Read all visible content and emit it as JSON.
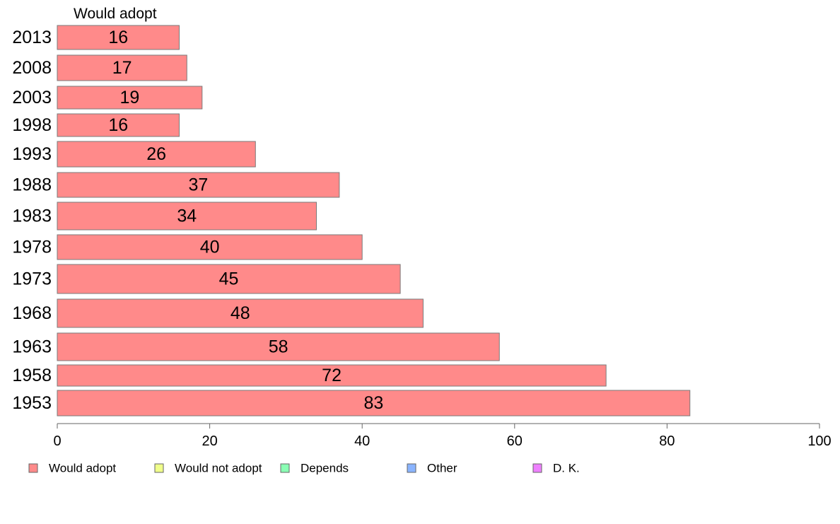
{
  "chart_data": {
    "type": "bar",
    "orientation": "horizontal",
    "series_header": "Would adopt",
    "categories": [
      "2013",
      "2008",
      "2003",
      "1998",
      "1993",
      "1988",
      "1983",
      "1978",
      "1973",
      "1968",
      "1963",
      "1958",
      "1953"
    ],
    "series": [
      {
        "name": "Would adopt",
        "color": "#ff8a8a",
        "values": [
          16,
          17,
          19,
          16,
          26,
          37,
          34,
          40,
          45,
          48,
          58,
          72,
          83
        ]
      }
    ],
    "xlim": [
      0,
      100
    ],
    "xticks": [
      0,
      20,
      40,
      60,
      80,
      100
    ],
    "grid": false,
    "legend": {
      "placement": "bottom",
      "items": [
        {
          "label": "Would adopt",
          "color": "#ff8a8a"
        },
        {
          "label": "Would not adopt",
          "color": "#f0ff8a"
        },
        {
          "label": "Depends",
          "color": "#8affb4"
        },
        {
          "label": "Other",
          "color": "#8ab4ff"
        },
        {
          "label": "D. K.",
          "color": "#ee80ff"
        }
      ]
    }
  }
}
